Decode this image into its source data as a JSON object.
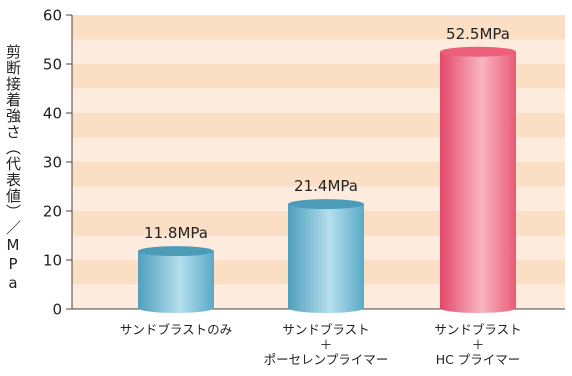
{
  "chart_data": {
    "type": "bar",
    "ylabel": "剪断接着強さ（代表値）／MPa",
    "ylim": [
      0,
      60
    ],
    "yticks": [
      "0",
      "10",
      "20",
      "30",
      "40",
      "50",
      "60"
    ],
    "grid": "horizontal bands",
    "categories": [
      {
        "lines": [
          "サンドブラストのみ"
        ]
      },
      {
        "lines": [
          "サンドブラスト",
          "＋",
          "ポーセレンプライマー"
        ]
      },
      {
        "lines": [
          "サンドブラスト",
          "＋",
          "HC プライマー"
        ]
      }
    ],
    "values": [
      11.8,
      21.4,
      52.5
    ],
    "data_labels": [
      "11.8MPa",
      "21.4MPa",
      "52.5MPa"
    ],
    "colors": {
      "bar_blue": "#5aaac6",
      "bar_blue_light": "#b8e0ee",
      "bar_pink": "#e9556f",
      "bar_pink_light": "#f8b3c0",
      "band_dark": "#fbdfc5",
      "band_light": "#fdecdd"
    }
  }
}
